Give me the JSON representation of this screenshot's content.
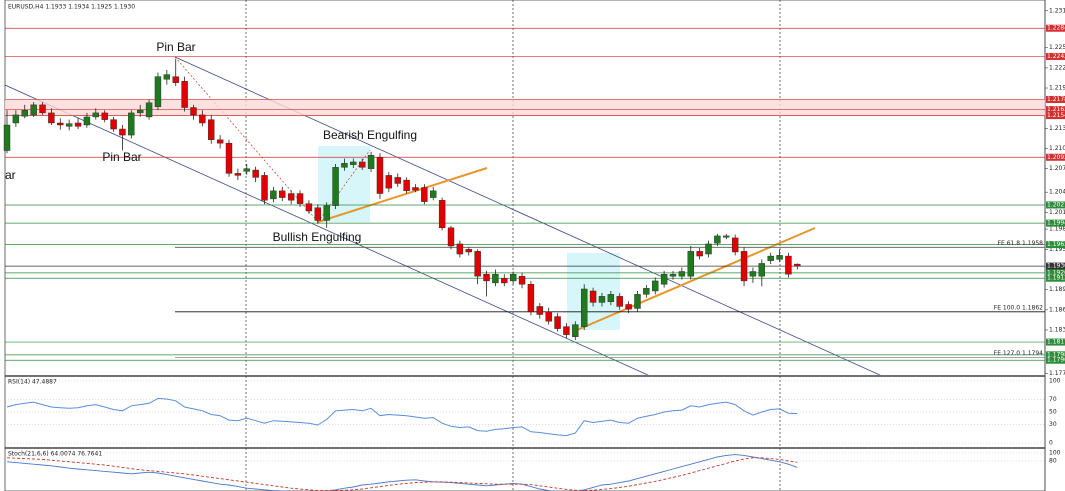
{
  "chart_data": {
    "type": "candlestick",
    "title": "EURUSD,H4  1.1933 1.1934 1.1925 1.1930",
    "up_color": "#1f7a1f",
    "down_color": "#e00000",
    "open": [
      1.2102,
      1.2143,
      1.2153,
      1.2155,
      1.217,
      1.2158,
      1.2143,
      1.2138,
      1.2143,
      1.214,
      1.2152,
      1.2158,
      1.2148,
      1.2134,
      1.2125,
      1.2158,
      1.2152,
      1.2167,
      1.2208,
      1.2212,
      1.2205,
      1.2166,
      1.2155,
      1.2148,
      1.2118,
      1.2113,
      1.2068,
      1.2071,
      1.2073,
      1.2065,
      1.203,
      1.2042,
      1.2038,
      1.2038,
      1.2023,
      1.2017,
      1.1998,
      1.202,
      1.2077,
      1.2081,
      1.2085,
      1.2075,
      1.2092,
      1.2065,
      1.2062,
      1.2058,
      1.2047,
      1.2047,
      1.2032,
      1.2028,
      1.1987,
      1.1963,
      1.1955,
      1.1952,
      1.1918,
      1.1905,
      1.1912,
      1.1908,
      1.1915,
      1.1903,
      1.187,
      1.1862,
      1.1855,
      1.184,
      1.1825,
      1.184,
      1.1893,
      1.1876,
      1.1877,
      1.1885,
      1.1873,
      1.1867,
      1.1888,
      1.1893,
      1.1903,
      1.1915,
      1.1915,
      1.1915,
      1.1952,
      1.1948,
      1.1964,
      1.1973,
      1.1972,
      1.1952,
      1.1915,
      1.1915,
      1.1938,
      1.194,
      1.1945,
      1.1933
    ],
    "high": [
      1.2162,
      1.2162,
      1.217,
      1.2174,
      1.2174,
      1.2165,
      1.215,
      1.2148,
      1.215,
      1.2158,
      1.2165,
      1.2162,
      1.2152,
      1.214,
      1.2162,
      1.217,
      1.2178,
      1.2218,
      1.2222,
      1.2238,
      1.2212,
      1.217,
      1.2162,
      1.2155,
      1.2125,
      1.2118,
      1.2075,
      1.2082,
      1.2078,
      1.207,
      1.2048,
      1.2048,
      1.2043,
      1.2043,
      1.2028,
      1.2022,
      1.2025,
      1.2082,
      1.209,
      1.209,
      1.209,
      1.21,
      1.2098,
      1.207,
      1.2068,
      1.2062,
      1.2052,
      1.2052,
      1.2048,
      1.2032,
      1.199,
      1.1968,
      1.1958,
      1.1955,
      1.1923,
      1.1925,
      1.1918,
      1.1922,
      1.192,
      1.1908,
      1.1875,
      1.1868,
      1.186,
      1.1845,
      1.1848,
      1.1903,
      1.1898,
      1.189,
      1.1893,
      1.189,
      1.1878,
      1.1893,
      1.1902,
      1.1913,
      1.1923,
      1.1923,
      1.1928,
      1.196,
      1.1957,
      1.1968,
      1.1978,
      1.1978,
      1.1977,
      1.1958,
      1.1928,
      1.194,
      1.195,
      1.1955,
      1.195,
      1.1934
    ],
    "low": [
      1.2098,
      1.2137,
      1.215,
      1.2152,
      1.2155,
      1.214,
      1.2133,
      1.2132,
      1.2134,
      1.2136,
      1.2148,
      1.2144,
      1.213,
      1.2102,
      1.212,
      1.2152,
      1.2148,
      1.2162,
      1.22,
      1.2198,
      1.216,
      1.2148,
      1.2138,
      1.2112,
      1.2105,
      1.2063,
      1.2058,
      1.2066,
      1.2055,
      1.2022,
      1.2025,
      1.2027,
      1.2022,
      1.2018,
      1.2008,
      1.1993,
      1.1987,
      1.2015,
      1.2072,
      1.2076,
      1.2073,
      1.207,
      1.203,
      1.204,
      1.2048,
      1.2038,
      1.204,
      1.2022,
      1.2028,
      1.1983,
      1.1955,
      1.1943,
      1.1946,
      1.1903,
      1.1885,
      1.19,
      1.19,
      1.1903,
      1.1897,
      1.1857,
      1.1852,
      1.1843,
      1.1833,
      1.1823,
      1.182,
      1.1835,
      1.187,
      1.187,
      1.1872,
      1.1865,
      1.186,
      1.1862,
      1.1883,
      1.1888,
      1.1898,
      1.191,
      1.191,
      1.191,
      1.194,
      1.1943,
      1.196,
      1.197,
      1.1946,
      1.19,
      1.1905,
      1.19,
      1.1933,
      1.1936,
      1.1913,
      1.1925
    ],
    "close": [
      1.214,
      1.2155,
      1.2162,
      1.217,
      1.2158,
      1.2143,
      1.214,
      1.2142,
      1.2138,
      1.2152,
      1.2158,
      1.2148,
      1.2134,
      1.2125,
      1.2158,
      1.2162,
      1.2173,
      1.2212,
      1.2215,
      1.2203,
      1.2166,
      1.2155,
      1.2143,
      1.2118,
      1.2113,
      1.2068,
      1.2065,
      1.2075,
      1.2062,
      1.2028,
      1.2042,
      1.2032,
      1.2028,
      1.2023,
      1.2012,
      1.1998,
      1.202,
      1.2077,
      1.2083,
      1.2085,
      1.2077,
      1.2095,
      1.2038,
      1.2046,
      1.2053,
      1.2042,
      1.2043,
      1.2026,
      1.2042,
      1.1987,
      1.196,
      1.1948,
      1.1951,
      1.1915,
      1.1908,
      1.1918,
      1.1905,
      1.1918,
      1.1903,
      1.1862,
      1.1858,
      1.1848,
      1.1837,
      1.1828,
      1.1843,
      1.1896,
      1.1876,
      1.1885,
      1.1888,
      1.187,
      1.1866,
      1.1888,
      1.1897,
      1.1908,
      1.1918,
      1.1918,
      1.1922,
      1.1952,
      1.1945,
      1.1963,
      1.1975,
      1.1975,
      1.1951,
      1.1908,
      1.1922,
      1.1934,
      1.1945,
      1.1946,
      1.1918,
      1.193
    ],
    "ylim": [
      1.1768,
      1.2326
    ],
    "yticks": [
      {
        "value": 1.231,
        "label": "1.2310"
      },
      {
        "value": 1.2255,
        "label": "1.2255"
      },
      {
        "value": 1.2225,
        "label": "1.2225"
      },
      {
        "value": 1.2195,
        "label": "1.2195"
      },
      {
        "value": 1.2135,
        "label": "1.2135"
      },
      {
        "value": 1.2105,
        "label": "1.2105"
      },
      {
        "value": 1.2075,
        "label": "1.2075"
      },
      {
        "value": 1.204,
        "label": "1.2040"
      },
      {
        "value": 1.201,
        "label": "1.2010"
      },
      {
        "value": 1.1985,
        "label": "1.1985"
      },
      {
        "value": 1.1955,
        "label": "1.1955"
      },
      {
        "value": 1.1895,
        "label": "1.1895"
      },
      {
        "value": 1.1865,
        "label": "1.1865"
      },
      {
        "value": 1.1835,
        "label": "1.1835"
      },
      {
        "value": 1.177,
        "label": "1.1770"
      }
    ],
    "levels": [
      {
        "value": 1.2284,
        "label": "1.2284",
        "color": "#d32f2f"
      },
      {
        "value": 1.2242,
        "label": "1.2242",
        "color": "#d32f2f"
      },
      {
        "value": 1.2178,
        "label": "1.2178",
        "color": "#d32f2f"
      },
      {
        "value": 1.2163,
        "label": "1.2163",
        "color": "#d32f2f"
      },
      {
        "value": 1.2154,
        "label": "1.2154",
        "color": "#d32f2f"
      },
      {
        "value": 1.2092,
        "label": "1.2092",
        "color": "#d32f2f"
      },
      {
        "value": 1.2021,
        "label": "1.2021",
        "color": "#2e8b3a"
      },
      {
        "value": 1.1994,
        "label": "1.1994",
        "color": "#2e8b3a"
      },
      {
        "value": 1.1962,
        "label": "1.1962",
        "color": "#2e8b3a"
      },
      {
        "value": 1.193,
        "label": "1.1930",
        "color": "#333333"
      },
      {
        "value": 1.192,
        "label": "1.1920",
        "color": "#2e8b3a"
      },
      {
        "value": 1.1912,
        "label": "1.1912",
        "color": "#2e8b3a"
      },
      {
        "value": 1.1817,
        "label": "1.1817",
        "color": "#2e8b3a"
      },
      {
        "value": 1.1798,
        "label": "1.1798",
        "color": "#2e8b3a"
      },
      {
        "value": 1.179,
        "label": "1.1790",
        "color": "#2e8b3a"
      }
    ],
    "fibo": [
      {
        "value": 1.1958,
        "label": "FE 61.8 1.1958",
        "color": "#555555"
      },
      {
        "value": 1.1862,
        "label": "FE 100.0 1.1862",
        "color": "#111111"
      },
      {
        "value": 1.1794,
        "label": "FE 127.0 1.1794",
        "color": "#888888"
      }
    ],
    "annotations": [
      {
        "text": "Pin Bar"
      },
      {
        "text": "Pin Bar"
      },
      {
        "text": "Bearish Engulfing"
      },
      {
        "text": "Bullish Engulfing"
      },
      {
        "text": "ar"
      }
    ],
    "rsi": {
      "label": "RSI(14) 47.4887",
      "color": "#5b8ed6",
      "ylim": [
        0,
        100
      ],
      "yticks": [
        100,
        70,
        50,
        30,
        0
      ],
      "values": [
        58,
        62,
        64,
        66,
        62,
        58,
        57,
        56,
        57,
        60,
        62,
        58,
        54,
        52,
        60,
        62,
        64,
        72,
        71,
        68,
        58,
        55,
        52,
        46,
        44,
        37,
        36,
        40,
        36,
        32,
        36,
        35,
        34,
        33,
        32,
        29,
        38,
        52,
        53,
        54,
        52,
        56,
        44,
        46,
        45,
        44,
        42,
        40,
        41,
        32,
        27,
        25,
        26,
        20,
        19,
        22,
        23,
        25,
        26,
        18,
        17,
        15,
        13,
        12,
        16,
        36,
        33,
        35,
        37,
        33,
        32,
        40,
        43,
        46,
        50,
        52,
        53,
        60,
        58,
        62,
        64,
        66,
        62,
        52,
        45,
        50,
        54,
        55,
        48,
        47.4887
      ]
    },
    "stoch": {
      "label": "Stoch(21,6,6) 64.0074 76.7641",
      "ylim": [
        0,
        100
      ],
      "yticks": [
        100,
        80
      ],
      "series": [
        {
          "color": "#4a78c8",
          "values": [
            78,
            76,
            74,
            72,
            70,
            68,
            65,
            62,
            60,
            58,
            56,
            54,
            52,
            50,
            48,
            50,
            52,
            50,
            46,
            42,
            38,
            34,
            30,
            26,
            22,
            20,
            16,
            12,
            10,
            8,
            6,
            5,
            4,
            4,
            3,
            3,
            5,
            8,
            12,
            15,
            20,
            22,
            25,
            28,
            30,
            32,
            33,
            30,
            28,
            27,
            26,
            24,
            22,
            20,
            18,
            20,
            22,
            24,
            22,
            16,
            10,
            6,
            4,
            3,
            4,
            8,
            14,
            20,
            22,
            26,
            30,
            36,
            42,
            48,
            54,
            60,
            66,
            72,
            78,
            84,
            90,
            94,
            96,
            94,
            90,
            86,
            82,
            78,
            72,
            64.0074
          ]
        },
        {
          "color": "#c0392b",
          "values": [
            88,
            87,
            86,
            85,
            84,
            82,
            80,
            78,
            76,
            74,
            72,
            70,
            67,
            64,
            61,
            58,
            56,
            54,
            52,
            50,
            48,
            45,
            42,
            39,
            36,
            33,
            30,
            27,
            24,
            21,
            18,
            15,
            12,
            10,
            8,
            6,
            6,
            6,
            7,
            8,
            10,
            13,
            16,
            19,
            22,
            24,
            26,
            27,
            28,
            28,
            27,
            26,
            25,
            24,
            23,
            22,
            22,
            22,
            22,
            21,
            18,
            15,
            12,
            9,
            7,
            6,
            7,
            9,
            11,
            14,
            17,
            21,
            25,
            29,
            34,
            39,
            44,
            50,
            56,
            62,
            68,
            74,
            80,
            85,
            88,
            88,
            86,
            84,
            80,
            76.7641
          ]
        }
      ]
    }
  }
}
